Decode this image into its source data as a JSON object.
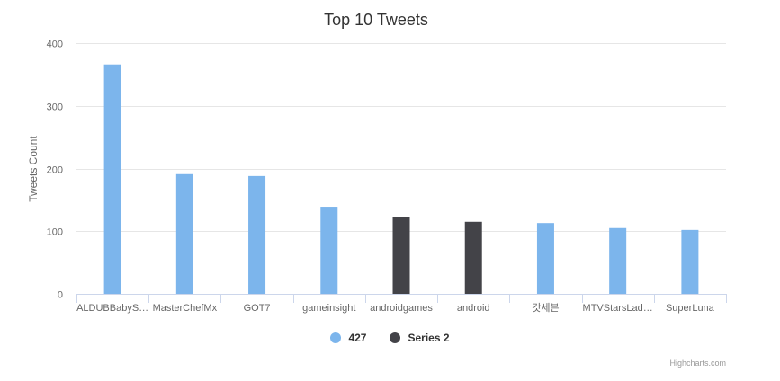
{
  "chart_data": {
    "type": "bar",
    "title": "Top 10 Tweets",
    "ylabel": "Tweets Count",
    "xlabel": "",
    "ylim": [
      0,
      400
    ],
    "yticks": [
      0,
      100,
      200,
      300,
      400
    ],
    "grid": true,
    "legend_position": "bottom",
    "categories": [
      "ALDUBBabyS…",
      "MasterChefMx",
      "GOT7",
      "gameinsight",
      "androidgames",
      "android",
      "갓세븐",
      "MTVStarsLad…",
      "SuperLuna"
    ],
    "series": [
      {
        "name": "427",
        "color": "#7cb5ec",
        "values": [
          366,
          191,
          188,
          139,
          null,
          null,
          113,
          105,
          102
        ]
      },
      {
        "name": "Series 2",
        "color": "#434348",
        "values": [
          null,
          null,
          null,
          null,
          122,
          115,
          null,
          null,
          null
        ]
      }
    ]
  },
  "credits": "Highcharts.com"
}
